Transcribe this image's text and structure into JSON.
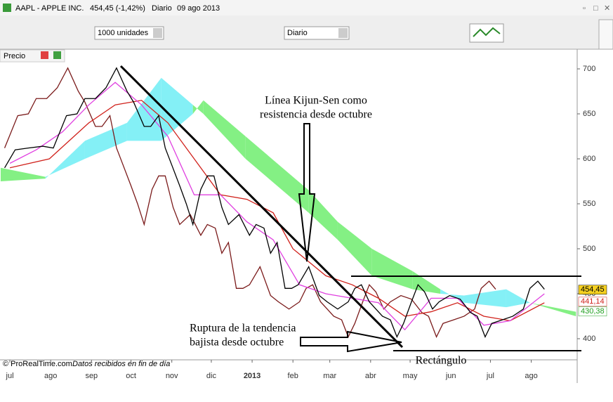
{
  "window": {
    "symbol": "AAPL - APPLE INC.",
    "price": "454,45 (-1,42%)",
    "period": "Diario",
    "date": "09 ago 2013"
  },
  "toolbar": {
    "units": "1000 unidades",
    "period": "Diario"
  },
  "panel_label": "Precio",
  "footer": {
    "copyright": "© ProRealTime.com",
    "note": "Datos recibidos en fin de día"
  },
  "chart_data": {
    "type": "line",
    "xlim": [
      -7.5,
      430.9
    ],
    "ylim": [
      377,
      720
    ],
    "xticks": [
      {
        "value": 0,
        "label": "jul"
      },
      {
        "value": 31,
        "label": "ago"
      },
      {
        "value": 62,
        "label": "sep"
      },
      {
        "value": 92,
        "label": "oct"
      },
      {
        "value": 123,
        "label": "nov"
      },
      {
        "value": 153,
        "label": "dic"
      },
      {
        "value": 184,
        "label": "2013"
      },
      {
        "value": 215,
        "label": "feb"
      },
      {
        "value": 243,
        "label": "mar"
      },
      {
        "value": 274,
        "label": "abr"
      },
      {
        "value": 304,
        "label": "may"
      },
      {
        "value": 335,
        "label": "jun"
      },
      {
        "value": 365,
        "label": "jul"
      },
      {
        "value": 396,
        "label": "ago"
      }
    ],
    "yticks": [
      400,
      450,
      500,
      550,
      600,
      650,
      700
    ],
    "cloud": {
      "up_color": "#84f084",
      "down_color": "#84f0f6",
      "x": [
        -7,
        27,
        57,
        89,
        115,
        139,
        147,
        179,
        227,
        249,
        275,
        306,
        327,
        345,
        377,
        395,
        430
      ],
      "span_a": [
        590,
        580,
        600,
        620,
        620,
        650,
        665,
        625,
        565,
        530,
        500,
        475,
        455,
        440,
        435,
        440,
        430
      ],
      "span_b": [
        575,
        578,
        620,
        640,
        690,
        660,
        650,
        600,
        540,
        510,
        470,
        455,
        450,
        448,
        455,
        440,
        425
      ]
    },
    "series": [
      {
        "color": "#7a1a1a",
        "x": [
          -4,
          6,
          14,
          20,
          28,
          36,
          44,
          52,
          57,
          65,
          70,
          76,
          81,
          86,
          92,
          97,
          102,
          108,
          113,
          118,
          124,
          129,
          137,
          145,
          150,
          156,
          161,
          166,
          172,
          177,
          182,
          190,
          198,
          204,
          212,
          220,
          225,
          230,
          236,
          241,
          246,
          252,
          257,
          262,
          268,
          273,
          278,
          284,
          289,
          297,
          305,
          313,
          318,
          324,
          329,
          337,
          345,
          353,
          358,
          364,
          369
        ],
        "values": [
          612,
          648,
          650,
          667,
          667,
          679,
          701,
          675,
          663,
          636,
          636,
          648,
          612,
          593,
          570,
          550,
          527,
          566,
          581,
          581,
          546,
          527,
          538,
          515,
          527,
          523,
          495,
          507,
          456,
          456,
          460,
          480,
          448,
          441,
          433,
          441,
          456,
          460,
          441,
          433,
          425,
          421,
          402,
          417,
          441,
          460,
          452,
          433,
          441,
          448,
          444,
          429,
          425,
          402,
          417,
          421,
          425,
          433,
          456,
          464,
          455
        ]
      },
      {
        "color": "#d0201a",
        "x": [
          0,
          30,
          60,
          80,
          100,
          120,
          140,
          160,
          180,
          200,
          215,
          240,
          260,
          280,
          300,
          320,
          340,
          360,
          380,
          406
        ],
        "values": [
          590,
          600,
          640,
          660,
          665,
          640,
          600,
          560,
          555,
          540,
          500,
          470,
          460,
          445,
          425,
          430,
          440,
          425,
          420,
          440
        ]
      },
      {
        "color": "#e040e0",
        "x": [
          0,
          20,
          40,
          60,
          80,
          100,
          120,
          140,
          160,
          180,
          200,
          220,
          240,
          260,
          280,
          300,
          320,
          340,
          360,
          380,
          406
        ],
        "values": [
          595,
          610,
          630,
          660,
          685,
          660,
          625,
          560,
          560,
          530,
          510,
          460,
          450,
          445,
          440,
          410,
          445,
          445,
          415,
          420,
          450
        ]
      },
      {
        "color": "#000000",
        "x": [
          -4,
          4,
          14,
          25,
          33,
          43,
          51,
          57,
          65,
          73,
          81,
          89,
          94,
          102,
          107,
          113,
          118,
          123,
          129,
          134,
          139,
          145,
          150,
          155,
          161,
          166,
          174,
          182,
          187,
          193,
          198,
          203,
          209,
          214,
          219,
          227,
          235,
          241,
          249,
          257,
          262,
          267,
          273,
          278,
          283,
          289,
          294,
          299,
          305,
          310,
          315,
          321,
          326,
          334,
          342,
          350,
          355,
          361,
          366,
          374,
          382,
          390,
          395,
          401,
          406
        ],
        "values": [
          590,
          610,
          612,
          614,
          612,
          648,
          650,
          667,
          667,
          679,
          701,
          675,
          663,
          636,
          636,
          648,
          612,
          593,
          570,
          550,
          527,
          566,
          581,
          581,
          546,
          527,
          538,
          515,
          527,
          523,
          495,
          507,
          456,
          456,
          460,
          480,
          448,
          441,
          433,
          441,
          456,
          460,
          441,
          433,
          425,
          421,
          402,
          417,
          441,
          460,
          452,
          433,
          441,
          448,
          444,
          429,
          425,
          402,
          417,
          421,
          425,
          433,
          456,
          464,
          455
        ]
      }
    ],
    "last_values": [
      {
        "value": 454.45,
        "label": "454,45",
        "color": "#000000",
        "background": "#f5d020"
      },
      {
        "value": 441.14,
        "label": "441,14",
        "color": "#d0201a",
        "background": "#ffffff"
      },
      {
        "value": 430.38,
        "label": "430,38",
        "color": "#20a020",
        "background": "#ffffff"
      }
    ],
    "annotations": [
      "Línea Kijun-Sen como",
      "resistencia desde octubre",
      "Ruptura de la tendencia",
      "bajista desde octubre",
      "Rectángulo"
    ]
  }
}
